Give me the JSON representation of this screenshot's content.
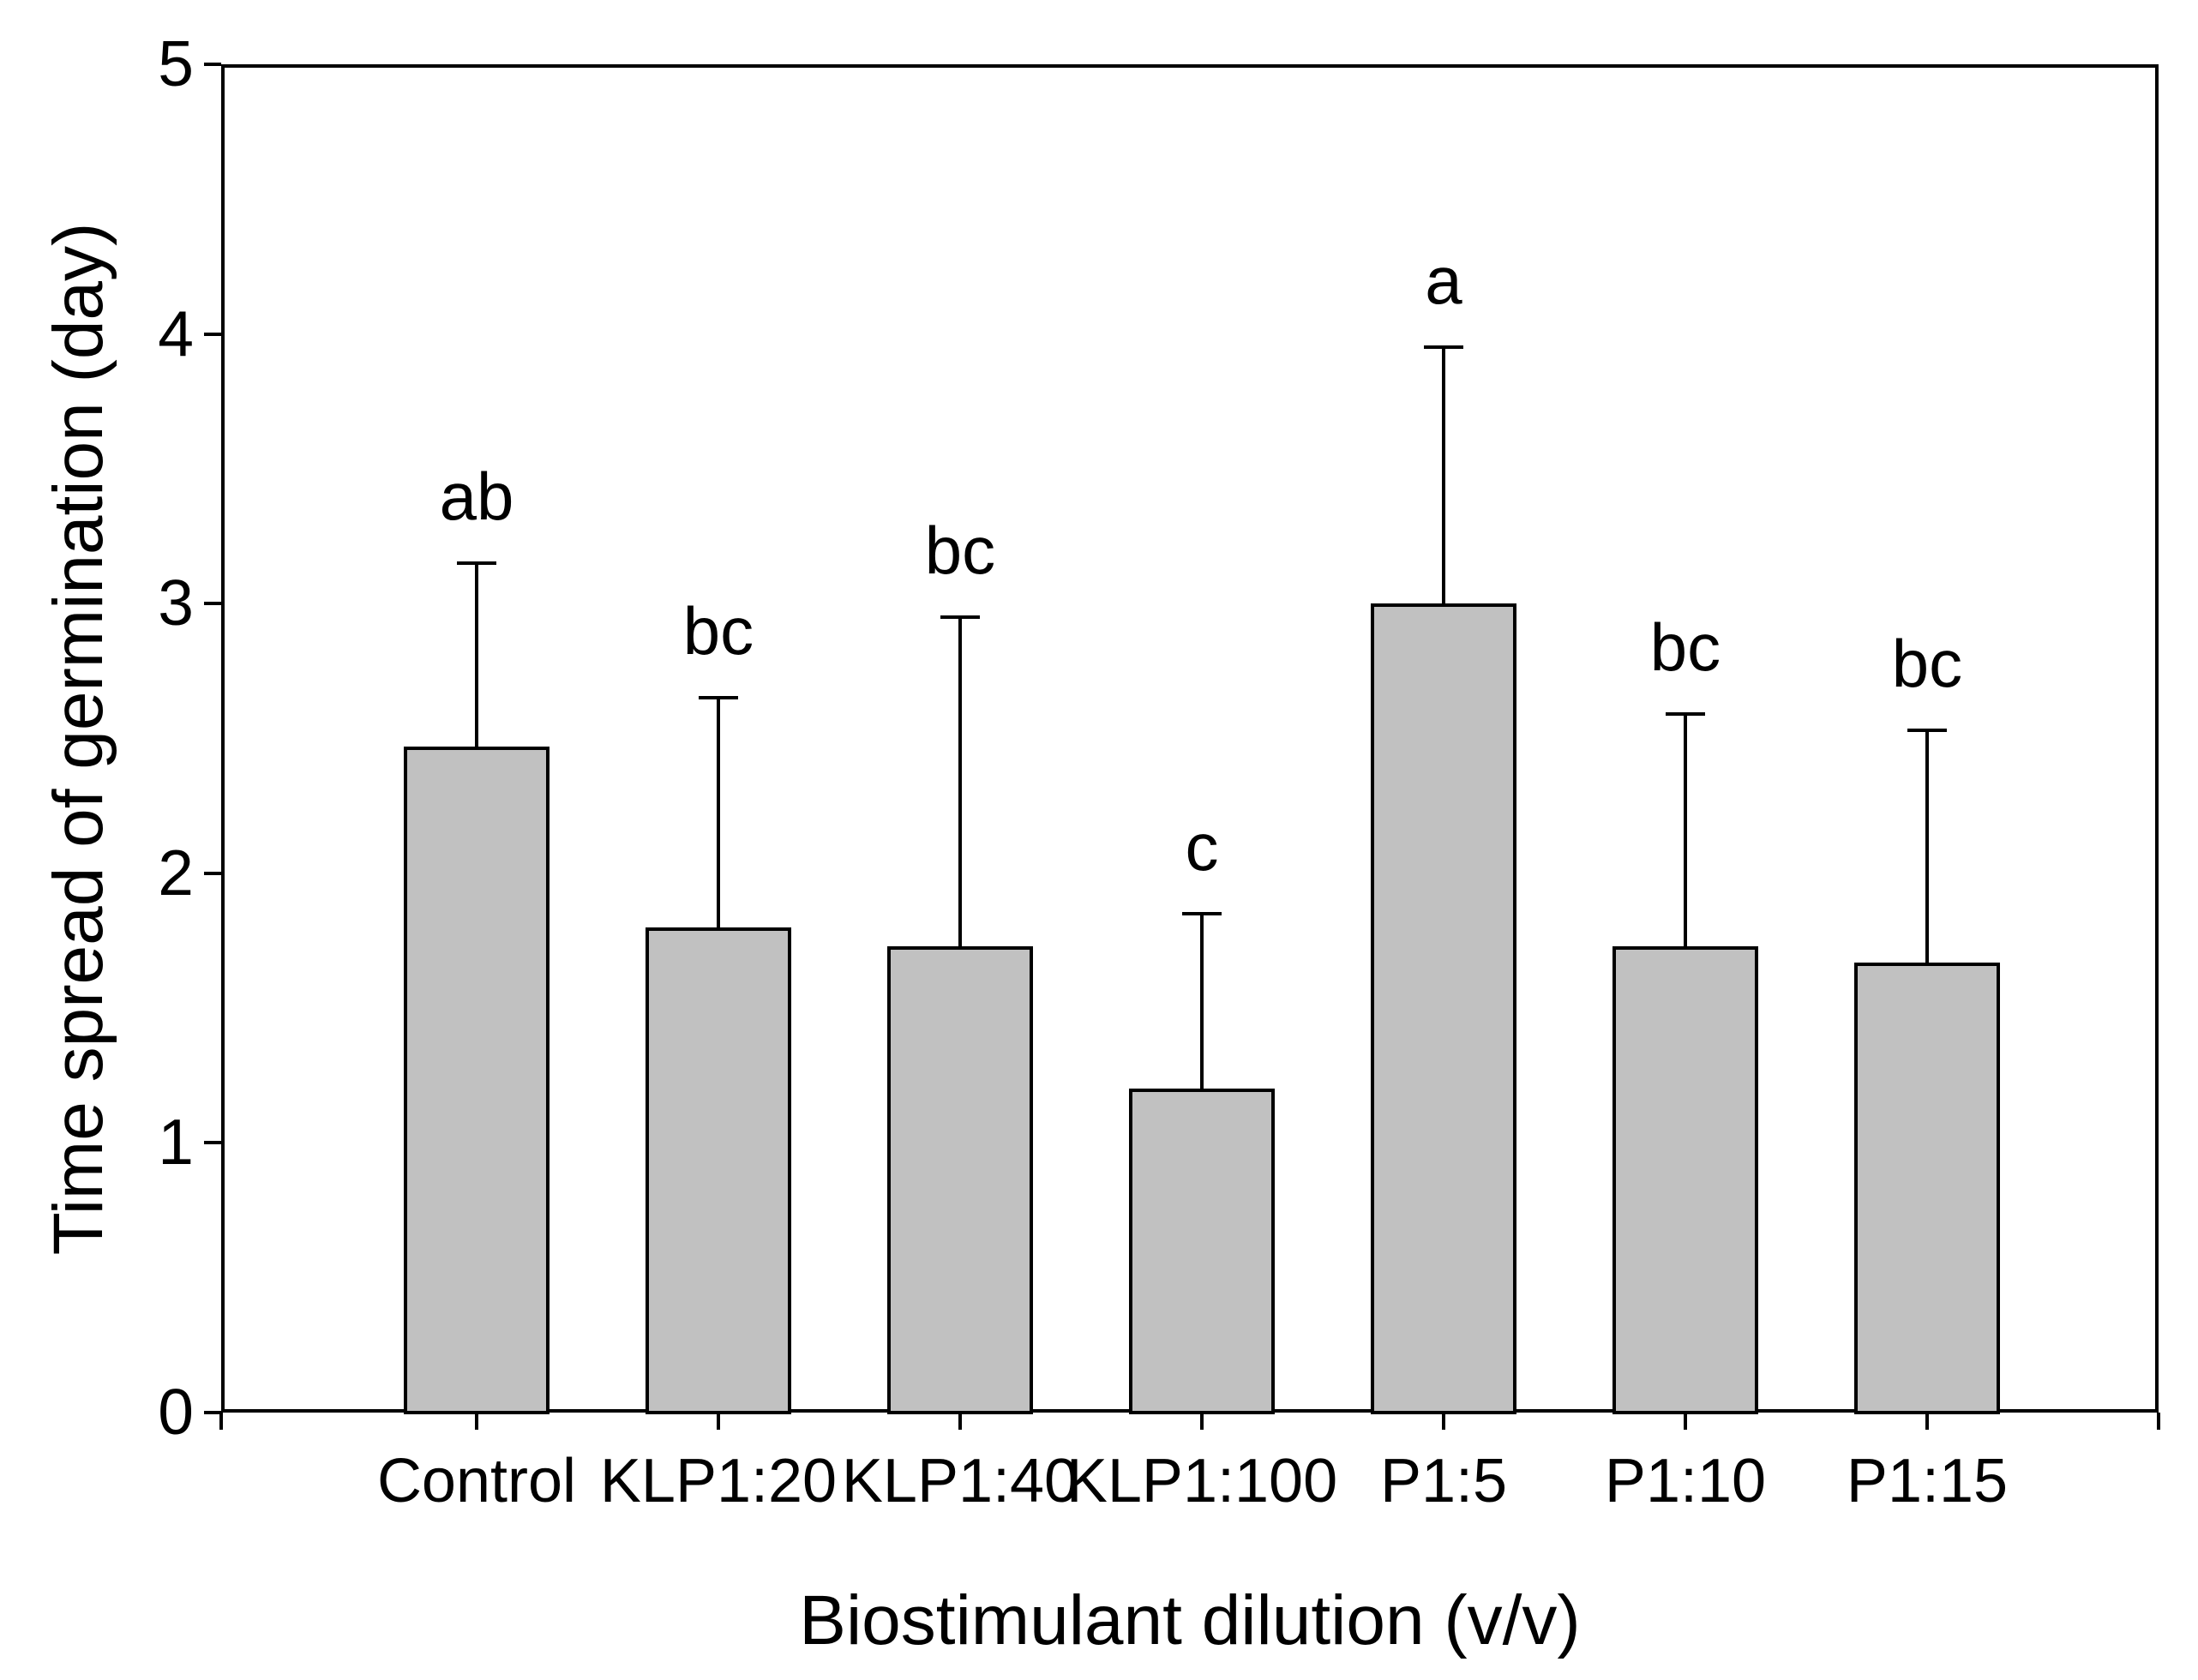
{
  "figure": {
    "background": "#ffffff",
    "text_color": "#000000"
  },
  "chart_data": {
    "type": "bar",
    "title": "",
    "xlabel": "Biostimulant dilution (v/v)",
    "ylabel": "Time spread of germination (day)",
    "categories": [
      "Control",
      "KLP1:20",
      "KLP1:40",
      "KLP1:100",
      "P1:5",
      "P1:10",
      "P1:15"
    ],
    "values": [
      2.47,
      1.8,
      1.73,
      1.2,
      3.0,
      1.73,
      1.67
    ],
    "errors_plus": [
      0.68,
      0.85,
      1.22,
      0.65,
      0.95,
      0.86,
      0.86
    ],
    "sig_letters": [
      "ab",
      "bc",
      "bc",
      "c",
      "a",
      "bc",
      "bc"
    ],
    "ylim": [
      0,
      5
    ],
    "yticks": [
      0,
      1,
      2,
      3,
      4,
      5
    ],
    "grid": false,
    "legend": "none",
    "bar_fill": "#c1c1c1",
    "bar_border": "#000000",
    "axis_color": "#000000"
  }
}
